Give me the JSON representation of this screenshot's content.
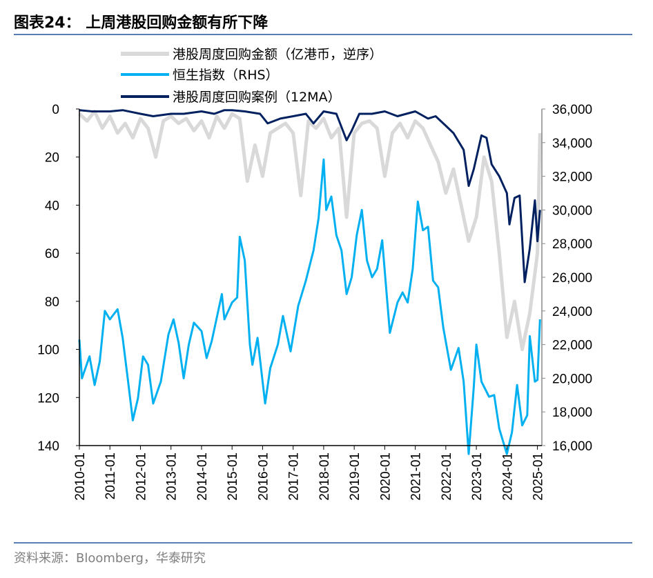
{
  "title": "图表24：  上周港股回购金额有所下降",
  "source": "资料来源：Bloomberg，华泰研究",
  "chart_data": {
    "type": "line",
    "grid": false,
    "legend_position": "top",
    "x_tick_labels": [
      "2010-01",
      "2011-01",
      "2012-01",
      "2013-01",
      "2014-01",
      "2015-01",
      "2016-01",
      "2017-01",
      "2018-01",
      "2019-01",
      "2020-01",
      "2021-01",
      "2022-01",
      "2023-01",
      "2024-01",
      "2025-01"
    ],
    "left_axis": {
      "range": [
        0,
        140
      ],
      "inverted": true,
      "tick_labels": [
        "0",
        "20",
        "40",
        "60",
        "80",
        "100",
        "120",
        "140"
      ]
    },
    "right_axis": {
      "range": [
        16000,
        36000
      ],
      "tick_labels": [
        "16,000",
        "18,000",
        "20,000",
        "22,000",
        "24,000",
        "26,000",
        "28,000",
        "30,000",
        "32,000",
        "34,000",
        "36,000"
      ]
    },
    "series": [
      {
        "name": "港股周度回购金额（亿港币，逆序）",
        "axis": "left",
        "color": "#d9d9d9",
        "x": [
          "2010-01",
          "2010-04",
          "2010-07",
          "2010-10",
          "2011-01",
          "2011-04",
          "2011-07",
          "2011-10",
          "2012-01",
          "2012-04",
          "2012-07",
          "2012-10",
          "2013-01",
          "2013-04",
          "2013-07",
          "2013-10",
          "2014-01",
          "2014-04",
          "2014-07",
          "2014-10",
          "2015-01",
          "2015-04",
          "2015-07",
          "2015-10",
          "2016-01",
          "2016-04",
          "2016-07",
          "2016-10",
          "2017-01",
          "2017-04",
          "2017-07",
          "2017-10",
          "2018-01",
          "2018-04",
          "2018-07",
          "2018-10",
          "2019-01",
          "2019-04",
          "2019-07",
          "2019-10",
          "2020-01",
          "2020-04",
          "2020-07",
          "2020-10",
          "2021-01",
          "2021-04",
          "2021-07",
          "2021-10",
          "2022-01",
          "2022-04",
          "2022-07",
          "2022-10",
          "2023-01",
          "2023-04",
          "2023-07",
          "2023-10",
          "2024-01",
          "2024-04",
          "2024-07",
          "2024-10",
          "2025-01",
          "2025-02"
        ],
        "values": [
          2,
          5,
          1,
          8,
          3,
          10,
          6,
          12,
          4,
          8,
          20,
          5,
          3,
          6,
          4,
          9,
          5,
          12,
          3,
          8,
          2,
          4,
          30,
          15,
          28,
          10,
          8,
          6,
          10,
          36,
          5,
          8,
          4,
          12,
          8,
          45,
          10,
          6,
          5,
          8,
          28,
          10,
          6,
          12,
          5,
          8,
          15,
          22,
          35,
          25,
          40,
          55,
          45,
          20,
          30,
          60,
          95,
          80,
          100,
          85,
          60,
          10
        ]
      },
      {
        "name": "恒生指数（RHS）",
        "axis": "right",
        "color": "#00b0f0",
        "x": [
          "2010-01",
          "2010-02",
          "2010-05",
          "2010-07",
          "2010-09",
          "2010-11",
          "2011-01",
          "2011-04",
          "2011-06",
          "2011-08",
          "2011-10",
          "2011-12",
          "2012-02",
          "2012-04",
          "2012-06",
          "2012-09",
          "2012-12",
          "2013-02",
          "2013-04",
          "2013-06",
          "2013-08",
          "2013-10",
          "2014-01",
          "2014-03",
          "2014-05",
          "2014-09",
          "2014-10",
          "2015-01",
          "2015-03",
          "2015-04",
          "2015-06",
          "2015-08",
          "2015-09",
          "2015-11",
          "2016-02",
          "2016-04",
          "2016-07",
          "2016-09",
          "2016-12",
          "2017-03",
          "2017-06",
          "2017-09",
          "2017-11",
          "2018-01",
          "2018-02",
          "2018-04",
          "2018-06",
          "2018-08",
          "2018-10",
          "2018-12",
          "2019-02",
          "2019-04",
          "2019-06",
          "2019-08",
          "2019-10",
          "2019-12",
          "2020-03",
          "2020-06",
          "2020-08",
          "2020-10",
          "2020-12",
          "2021-02",
          "2021-04",
          "2021-06",
          "2021-08",
          "2021-10",
          "2021-12",
          "2022-03",
          "2022-06",
          "2022-08",
          "2022-10",
          "2022-12",
          "2023-01",
          "2023-03",
          "2023-06",
          "2023-08",
          "2023-10",
          "2024-01",
          "2024-03",
          "2024-05",
          "2024-07",
          "2024-09",
          "2024-10",
          "2024-12",
          "2025-01",
          "2025-02"
        ],
        "values": [
          22300,
          20000,
          21300,
          19600,
          21000,
          24000,
          23500,
          24100,
          22400,
          20000,
          17500,
          18800,
          21300,
          20800,
          18500,
          19800,
          22600,
          23500,
          22100,
          20000,
          22000,
          23300,
          22800,
          21200,
          22200,
          25000,
          23500,
          24500,
          24800,
          28400,
          27000,
          22000,
          20800,
          22400,
          18500,
          20600,
          22000,
          23700,
          21600,
          24300,
          25800,
          27600,
          29500,
          33000,
          30000,
          30800,
          28500,
          27600,
          25000,
          26000,
          28500,
          30000,
          27000,
          26000,
          26500,
          28200,
          22700,
          24500,
          25100,
          24500,
          26500,
          30500,
          28800,
          29000,
          25800,
          25400,
          23000,
          20500,
          21800,
          19800,
          15500,
          19500,
          22000,
          19800,
          18900,
          19000,
          17000,
          15500,
          16800,
          19600,
          17200,
          17800,
          22500,
          19800,
          19900,
          23500
        ]
      },
      {
        "name": "港股周度回购案例（12MA）",
        "axis": "left",
        "color": "#002060",
        "x": [
          "2010-01",
          "2010-06",
          "2011-01",
          "2011-06",
          "2012-01",
          "2012-06",
          "2013-01",
          "2013-06",
          "2014-01",
          "2014-06",
          "2014-10",
          "2015-01",
          "2015-06",
          "2015-12",
          "2016-03",
          "2016-08",
          "2017-01",
          "2017-06",
          "2017-09",
          "2018-01",
          "2018-06",
          "2018-10",
          "2018-12",
          "2019-03",
          "2019-08",
          "2020-01",
          "2020-06",
          "2021-01",
          "2021-06",
          "2021-09",
          "2022-01",
          "2022-04",
          "2022-08",
          "2022-10",
          "2022-12",
          "2023-03",
          "2023-05",
          "2023-07",
          "2023-10",
          "2024-01",
          "2024-02",
          "2024-04",
          "2024-06",
          "2024-08",
          "2024-10",
          "2024-12",
          "2025-01",
          "2025-02"
        ],
        "values": [
          0.5,
          1,
          1,
          0.5,
          2,
          3,
          2,
          2,
          1,
          2,
          0.5,
          0.5,
          1,
          2,
          6,
          4,
          3,
          2,
          6,
          1,
          2,
          13,
          9,
          2,
          2,
          1,
          3,
          1,
          4,
          3,
          7,
          10,
          17,
          32,
          25,
          11,
          12,
          23,
          28,
          35,
          48,
          37,
          36,
          72,
          58,
          38,
          55,
          42
        ]
      }
    ]
  }
}
